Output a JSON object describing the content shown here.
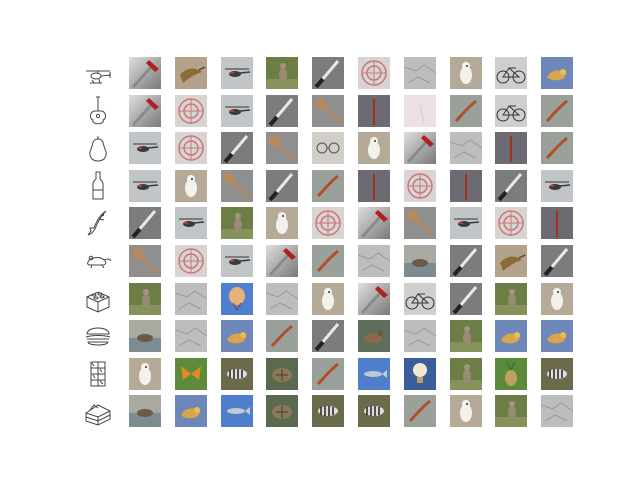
{
  "palette": {
    "background": "#ffffff",
    "sketch_stroke": "#444444"
  },
  "rows": [
    {
      "sketch": "helicopter-sketch-icon",
      "results": [
        "hammer",
        "hummingbird",
        "helicopter",
        "kangaroo",
        "knife",
        "target",
        "rock",
        "owl",
        "bicycle",
        "bird"
      ]
    },
    {
      "sketch": "guitar-sketch-icon",
      "results": [
        "hammer",
        "target",
        "helicopter",
        "knife",
        "spoon",
        "windmill",
        "sky-pink",
        "lizard",
        "bicycle",
        "lizard"
      ]
    },
    {
      "sketch": "pear-sketch-icon",
      "results": [
        "helicopter",
        "target",
        "knife",
        "spoon",
        "eyeglasses",
        "owl",
        "hammer",
        "rock",
        "windmill",
        "lizard"
      ]
    },
    {
      "sketch": "bottle-sketch-icon",
      "results": [
        "helicopter",
        "owl",
        "spoon",
        "knife",
        "lizard",
        "windmill",
        "target",
        "windmill",
        "knife",
        "helicopter"
      ]
    },
    {
      "sketch": "shark-sketch-icon",
      "results": [
        "knife",
        "helicopter",
        "kangaroo",
        "owl",
        "target",
        "hammer",
        "spoon",
        "helicopter",
        "target",
        "windmill"
      ]
    },
    {
      "sketch": "mouse-sketch-icon",
      "results": [
        "spoon",
        "target",
        "helicopter",
        "hammer",
        "lizard",
        "rock",
        "seal",
        "knife",
        "hummingbird",
        "knife"
      ]
    },
    {
      "sketch": "lego-sketch-icon",
      "results": [
        "kangaroo",
        "rock",
        "balloon",
        "rock",
        "owl",
        "hammer",
        "bicycle",
        "knife",
        "kangaroo",
        "owl"
      ]
    },
    {
      "sketch": "hamburger-sketch-icon",
      "results": [
        "seal",
        "rock",
        "bird",
        "lizard",
        "knife",
        "duck",
        "rock",
        "kangaroo",
        "bird",
        "bird"
      ]
    },
    {
      "sketch": "chocolate-sketch-icon",
      "results": [
        "owl",
        "butterfly",
        "zebra",
        "turtle",
        "lizard",
        "fish",
        "lightbulb",
        "kangaroo",
        "pineapple",
        "zebra"
      ]
    },
    {
      "sketch": "cake-sketch-icon",
      "results": [
        "seal",
        "bird",
        "fish",
        "turtle",
        "zebra",
        "zebra",
        "lizard",
        "owl",
        "kangaroo",
        "rock"
      ]
    }
  ]
}
